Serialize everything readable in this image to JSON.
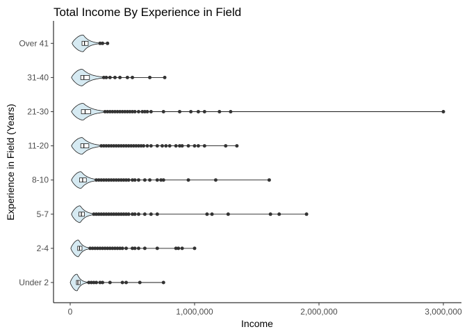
{
  "chart_data": {
    "type": "violin-boxplot",
    "orientation": "horizontal",
    "title": "Total Income By Experience in Field",
    "xlabel": "Income",
    "ylabel": "Experience in Field (Years)",
    "xlim": [
      0,
      3050000
    ],
    "x_ticks": [
      0,
      1000000,
      2000000,
      3000000
    ],
    "x_tick_labels": [
      "0",
      "1,000,000",
      "2,000,000",
      "3,000,000"
    ],
    "categories": [
      "Under 2",
      "2-4",
      "5-7",
      "8-10",
      "11-20",
      "21-30",
      "31-40",
      "Over 41"
    ],
    "grid": false,
    "violin_fill": "#d6eaf2",
    "point_color": "#333333",
    "series": [
      {
        "category": "Under 2",
        "q1": 50000,
        "median": 62000,
        "q3": 80000,
        "whisker_min": 0,
        "whisker_max": 140000,
        "max": 750000,
        "outliers": [
          150000,
          170000,
          190000,
          210000,
          240000,
          260000,
          320000,
          420000,
          450000,
          560000,
          750000
        ]
      },
      {
        "category": "2-4",
        "q1": 60000,
        "median": 75000,
        "q3": 95000,
        "whisker_min": 5000,
        "whisker_max": 150000,
        "max": 1000000,
        "outliers": [
          160000,
          180000,
          200000,
          220000,
          240000,
          260000,
          280000,
          300000,
          320000,
          340000,
          360000,
          380000,
          400000,
          420000,
          450000,
          500000,
          520000,
          550000,
          600000,
          700000,
          850000,
          870000,
          900000,
          1000000
        ]
      },
      {
        "category": "5-7",
        "q1": 70000,
        "median": 90000,
        "q3": 115000,
        "whisker_min": 10000,
        "whisker_max": 180000,
        "max": 1900000,
        "outliers": [
          190000,
          210000,
          230000,
          250000,
          270000,
          290000,
          310000,
          330000,
          350000,
          370000,
          390000,
          410000,
          430000,
          450000,
          470000,
          500000,
          520000,
          550000,
          600000,
          650000,
          700000,
          1100000,
          1140000,
          1270000,
          1610000,
          1680000,
          1900000
        ]
      },
      {
        "category": "8-10",
        "q1": 75000,
        "median": 100000,
        "q3": 130000,
        "whisker_min": 10000,
        "whisker_max": 200000,
        "max": 1600000,
        "outliers": [
          210000,
          230000,
          250000,
          270000,
          290000,
          310000,
          330000,
          350000,
          370000,
          390000,
          410000,
          430000,
          450000,
          470000,
          500000,
          520000,
          550000,
          600000,
          640000,
          700000,
          730000,
          750000,
          950000,
          1170000,
          1600000
        ]
      },
      {
        "category": "11-20",
        "q1": 85000,
        "median": 110000,
        "q3": 150000,
        "whisker_min": 10000,
        "whisker_max": 240000,
        "max": 1340000,
        "outliers": [
          250000,
          270000,
          290000,
          310000,
          330000,
          350000,
          370000,
          390000,
          410000,
          430000,
          450000,
          470000,
          490000,
          510000,
          530000,
          550000,
          570000,
          590000,
          620000,
          650000,
          700000,
          740000,
          770000,
          800000,
          850000,
          880000,
          900000,
          950000,
          1000000,
          1030000,
          1080000,
          1250000,
          1340000
        ]
      },
      {
        "category": "21-30",
        "q1": 90000,
        "median": 120000,
        "q3": 165000,
        "whisker_min": 10000,
        "whisker_max": 270000,
        "max": 3000000,
        "outliers": [
          280000,
          300000,
          320000,
          340000,
          360000,
          380000,
          400000,
          420000,
          440000,
          460000,
          480000,
          500000,
          520000,
          550000,
          580000,
          600000,
          620000,
          650000,
          750000,
          880000,
          970000,
          1030000,
          1080000,
          1200000,
          1290000,
          3000000
        ]
      },
      {
        "category": "31-40",
        "q1": 85000,
        "median": 110000,
        "q3": 155000,
        "whisker_min": 10000,
        "whisker_max": 250000,
        "max": 760000,
        "outliers": [
          270000,
          290000,
          320000,
          360000,
          400000,
          460000,
          500000,
          640000,
          760000
        ]
      },
      {
        "category": "Over 41",
        "q1": 95000,
        "median": 115000,
        "q3": 145000,
        "whisker_min": 15000,
        "whisker_max": 200000,
        "max": 300000,
        "outliers": [
          240000,
          260000,
          300000
        ]
      }
    ]
  }
}
